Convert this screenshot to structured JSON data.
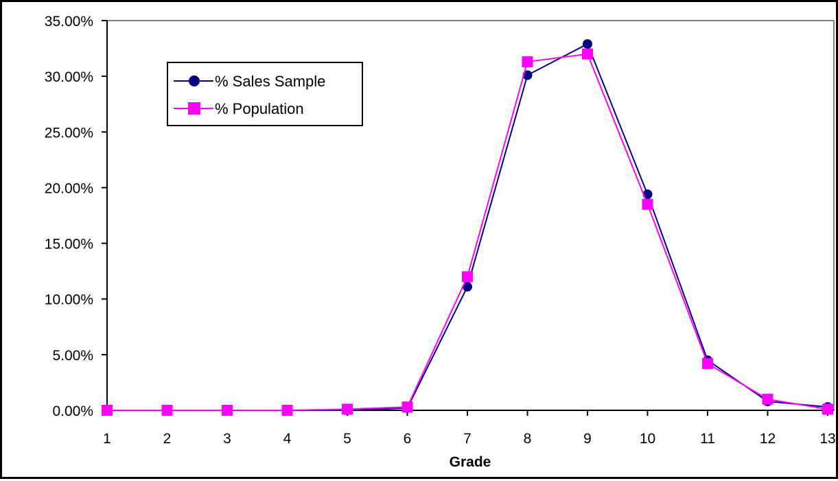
{
  "chart_data": {
    "type": "line",
    "title": "",
    "xlabel": "Grade",
    "ylabel": "",
    "categories": [
      "1",
      "2",
      "3",
      "4",
      "5",
      "6",
      "7",
      "8",
      "9",
      "10",
      "11",
      "12",
      "13"
    ],
    "ylim": [
      0,
      35
    ],
    "yticks": [
      "0.00%",
      "5.00%",
      "10.00%",
      "15.00%",
      "20.00%",
      "25.00%",
      "30.00%",
      "35.00%"
    ],
    "grid": false,
    "legend_position": "top-left",
    "series": [
      {
        "name": "% Sales Sample",
        "color": "#000080",
        "marker": "circle",
        "values": [
          0,
          0,
          0,
          0,
          0,
          0.2,
          11.1,
          30.1,
          32.9,
          19.4,
          4.5,
          0.8,
          0.3
        ]
      },
      {
        "name": "% Population",
        "color": "#FF00FF",
        "marker": "square",
        "values": [
          0,
          0,
          0,
          0,
          0.1,
          0.3,
          12.0,
          31.3,
          32.0,
          18.5,
          4.2,
          1.0,
          0.1
        ]
      }
    ]
  }
}
